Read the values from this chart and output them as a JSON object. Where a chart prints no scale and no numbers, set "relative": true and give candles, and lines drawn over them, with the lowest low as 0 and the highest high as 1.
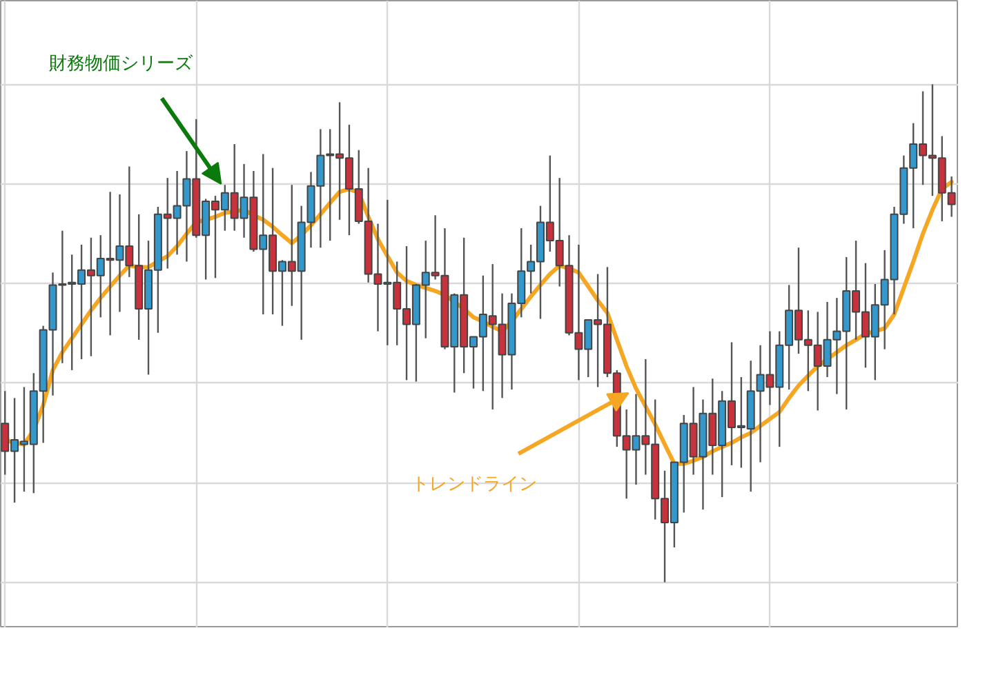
{
  "chart_data": {
    "type": "candlestick",
    "relative": true,
    "grid": true,
    "annotations": [
      "財務物価シリーズ"
    ],
    "categories": [
      null,
      null,
      null,
      null,
      null,
      null,
      null,
      null,
      null,
      null,
      null,
      null,
      null,
      null,
      null,
      null,
      null,
      null,
      null,
      null,
      null,
      null,
      null,
      null,
      null,
      null,
      null,
      null,
      null,
      null,
      null,
      null,
      null,
      null,
      null,
      null,
      null,
      null,
      null,
      null,
      null,
      null,
      null,
      null,
      null,
      null,
      null,
      null,
      null,
      null,
      null,
      null,
      null,
      null,
      null,
      null,
      null,
      null,
      null,
      null,
      null,
      null,
      null,
      null,
      null,
      null,
      null,
      null,
      null,
      null,
      null,
      null,
      null,
      null,
      null,
      null,
      null,
      null,
      null,
      null,
      null,
      null,
      null,
      null,
      null,
      null,
      null,
      null,
      null,
      null,
      null,
      null,
      null,
      null,
      null,
      null,
      null,
      null,
      null,
      null
    ],
    "series": [
      {
        "colors": [
          "#c8323c",
          "#3399cc",
          "#3399cc",
          "#3399cc",
          "#3399cc",
          "#3399cc",
          "#3399cc",
          "#3399cc",
          "#3399cc",
          "#c8323c",
          "#3399cc",
          "#c8323c",
          "#3399cc",
          "#c8323c",
          "#c8323c",
          "#3399cc",
          "#3399cc",
          "#c8323c",
          "#3399cc",
          "#3399cc",
          "#c8323c",
          "#3399cc",
          "#c8323c",
          "#3399cc",
          "#c8323c",
          "#3399cc",
          "#c8323c",
          "#3399cc",
          "#c8323c",
          "#3399cc",
          "#c8323c",
          "#3399cc",
          "#3399cc",
          "#3399cc",
          "#3399cc",
          "#c8323c",
          "#c8323c",
          "#c8323c",
          "#c8323c",
          "#c8323c",
          "#3399cc",
          "#c8323c",
          "#c8323c",
          "#3399cc",
          "#3399cc",
          "#c8323c",
          "#c8323c",
          "#3399cc",
          "#c8323c",
          "#3399cc",
          "#3399cc",
          "#c8323c",
          "#c8323c",
          "#3399cc",
          "#3399cc",
          "#3399cc",
          "#3399cc",
          "#c8323c",
          "#c8323c",
          "#c8323c",
          "#c8323c",
          "#3399cc",
          "#c8323c",
          "#c8323c",
          "#c8323c",
          "#c8323c",
          "#3399cc",
          "#c8323c",
          "#c8323c",
          "#c8323c",
          "#3399cc",
          "#3399cc",
          "#c8323c",
          "#3399cc",
          "#c8323c",
          "#3399cc",
          "#c8323c",
          "#3399cc",
          "#3399cc",
          "#3399cc",
          "#c8323c",
          "#3399cc",
          "#3399cc",
          "#c8323c",
          "#c8323c",
          "#c8323c",
          "#3399cc",
          "#3399cc",
          "#3399cc",
          "#c8323c",
          "#c8323c",
          "#3399cc",
          "#3399cc",
          "#3399cc",
          "#3399cc",
          "#3399cc",
          "#c8323c",
          "#c8323c",
          "#c8323c",
          "#c8323c"
        ],
        "ohlc": [
          [
            0.319,
            0.384,
            0.216,
            0.263
          ],
          [
            0.263,
            0.37,
            0.16,
            0.286
          ],
          [
            0.277,
            0.392,
            0.182,
            0.283
          ],
          [
            0.277,
            0.42,
            0.179,
            0.384
          ],
          [
            0.384,
            0.515,
            0.28,
            0.507
          ],
          [
            0.507,
            0.622,
            0.375,
            0.597
          ],
          [
            0.597,
            0.706,
            0.44,
            0.599
          ],
          [
            0.599,
            0.658,
            0.426,
            0.602
          ],
          [
            0.599,
            0.678,
            0.448,
            0.627
          ],
          [
            0.627,
            0.692,
            0.454,
            0.616
          ],
          [
            0.616,
            0.697,
            0.532,
            0.65
          ],
          [
            0.65,
            0.784,
            0.496,
            0.647
          ],
          [
            0.647,
            0.779,
            0.543,
            0.675
          ],
          [
            0.675,
            0.835,
            0.613,
            0.636
          ],
          [
            0.636,
            0.739,
            0.487,
            0.549
          ],
          [
            0.549,
            0.686,
            0.417,
            0.627
          ],
          [
            0.627,
            0.754,
            0.501,
            0.739
          ],
          [
            0.739,
            0.812,
            0.63,
            0.731
          ],
          [
            0.731,
            0.826,
            0.658,
            0.756
          ],
          [
            0.756,
            0.866,
            0.644,
            0.81
          ],
          [
            0.81,
            0.93,
            0.692,
            0.697
          ],
          [
            0.697,
            0.77,
            0.608,
            0.765
          ],
          [
            0.765,
            0.776,
            0.611,
            0.748
          ],
          [
            0.748,
            0.798,
            0.706,
            0.782
          ],
          [
            0.782,
            0.88,
            0.706,
            0.731
          ],
          [
            0.731,
            0.84,
            0.692,
            0.773
          ],
          [
            0.773,
            0.826,
            0.664,
            0.669
          ],
          [
            0.669,
            0.86,
            0.538,
            0.697
          ],
          [
            0.697,
            0.832,
            0.538,
            0.625
          ],
          [
            0.625,
            0.647,
            0.515,
            0.644
          ],
          [
            0.644,
            0.798,
            0.555,
            0.625
          ],
          [
            0.625,
            0.756,
            0.487,
            0.723
          ],
          [
            0.723,
            0.824,
            0.672,
            0.796
          ],
          [
            0.796,
            0.91,
            0.672,
            0.857
          ],
          [
            0.857,
            0.91,
            0.686,
            0.86
          ],
          [
            0.86,
            0.964,
            0.728,
            0.852
          ],
          [
            0.852,
            0.919,
            0.697,
            0.79
          ],
          [
            0.79,
            0.868,
            0.72,
            0.725
          ],
          [
            0.725,
            0.832,
            0.602,
            0.619
          ],
          [
            0.619,
            0.72,
            0.504,
            0.599
          ],
          [
            0.599,
            0.768,
            0.476,
            0.602
          ],
          [
            0.602,
            0.644,
            0.476,
            0.549
          ],
          [
            0.549,
            0.675,
            0.406,
            0.518
          ],
          [
            0.518,
            0.599,
            0.403,
            0.597
          ],
          [
            0.597,
            0.686,
            0.49,
            0.622
          ],
          [
            0.622,
            0.737,
            0.608,
            0.616
          ],
          [
            0.616,
            0.711,
            0.468,
            0.473
          ],
          [
            0.473,
            0.58,
            0.381,
            0.577
          ],
          [
            0.577,
            0.692,
            0.42,
            0.473
          ],
          [
            0.473,
            0.493,
            0.389,
            0.493
          ],
          [
            0.493,
            0.616,
            0.384,
            0.538
          ],
          [
            0.535,
            0.639,
            0.347,
            0.518
          ],
          [
            0.518,
            0.58,
            0.37,
            0.457
          ],
          [
            0.457,
            0.58,
            0.387,
            0.56
          ],
          [
            0.56,
            0.711,
            0.532,
            0.625
          ],
          [
            0.625,
            0.678,
            0.58,
            0.644
          ],
          [
            0.644,
            0.756,
            0.529,
            0.723
          ],
          [
            0.723,
            0.857,
            0.664,
            0.686
          ],
          [
            0.686,
            0.812,
            0.594,
            0.636
          ],
          [
            0.636,
            0.697,
            0.496,
            0.501
          ],
          [
            0.501,
            0.678,
            0.406,
            0.468
          ],
          [
            0.468,
            0.527,
            0.412,
            0.527
          ],
          [
            0.527,
            0.619,
            0.392,
            0.518
          ],
          [
            0.518,
            0.633,
            0.412,
            0.42
          ],
          [
            0.42,
            0.426,
            0.272,
            0.294
          ],
          [
            0.294,
            0.347,
            0.168,
            0.266
          ],
          [
            0.266,
            0.378,
            0.196,
            0.294
          ],
          [
            0.294,
            0.448,
            0.216,
            0.277
          ],
          [
            0.277,
            0.367,
            0.126,
            0.168
          ],
          [
            0.168,
            0.224,
            0.0,
            0.12
          ],
          [
            0.12,
            0.241,
            0.07,
            0.241
          ],
          [
            0.241,
            0.336,
            0.14,
            0.319
          ],
          [
            0.319,
            0.392,
            0.216,
            0.252
          ],
          [
            0.252,
            0.367,
            0.146,
            0.339
          ],
          [
            0.339,
            0.409,
            0.216,
            0.275
          ],
          [
            0.275,
            0.384,
            0.171,
            0.364
          ],
          [
            0.364,
            0.482,
            0.235,
            0.311
          ],
          [
            0.311,
            0.412,
            0.23,
            0.314
          ],
          [
            0.308,
            0.445,
            0.182,
            0.384
          ],
          [
            0.384,
            0.476,
            0.241,
            0.417
          ],
          [
            0.417,
            0.504,
            0.356,
            0.392
          ],
          [
            0.392,
            0.504,
            0.272,
            0.476
          ],
          [
            0.476,
            0.597,
            0.387,
            0.546
          ],
          [
            0.546,
            0.672,
            0.459,
            0.487
          ],
          [
            0.487,
            0.546,
            0.384,
            0.476
          ],
          [
            0.476,
            0.543,
            0.345,
            0.434
          ],
          [
            0.434,
            0.563,
            0.412,
            0.487
          ],
          [
            0.487,
            0.571,
            0.378,
            0.504
          ],
          [
            0.504,
            0.653,
            0.347,
            0.585
          ],
          [
            0.585,
            0.686,
            0.487,
            0.543
          ],
          [
            0.543,
            0.641,
            0.431,
            0.493
          ],
          [
            0.493,
            0.599,
            0.406,
            0.557
          ],
          [
            0.557,
            0.667,
            0.468,
            0.608
          ],
          [
            0.608,
            0.754,
            0.538,
            0.739
          ],
          [
            0.739,
            0.857,
            0.72,
            0.832
          ],
          [
            0.832,
            0.922,
            0.711,
            0.88
          ],
          [
            0.88,
            0.986,
            0.798,
            0.857
          ],
          [
            0.857,
            1.0,
            0.776,
            0.852
          ],
          [
            0.852,
            0.896,
            0.725,
            0.782
          ],
          [
            0.782,
            0.815,
            0.734,
            0.759
          ]
        ]
      },
      {
        "name": "トレンドライン",
        "type": "line",
        "color": "#f5a623",
        "values": [
          0.286,
          0.28,
          0.277,
          0.305,
          0.356,
          0.426,
          0.462,
          0.49,
          0.518,
          0.546,
          0.571,
          0.594,
          0.616,
          0.636,
          0.633,
          0.633,
          0.644,
          0.655,
          0.675,
          0.7,
          0.723,
          0.728,
          0.734,
          0.742,
          0.745,
          0.748,
          0.737,
          0.728,
          0.714,
          0.697,
          0.681,
          0.697,
          0.717,
          0.739,
          0.762,
          0.784,
          0.79,
          0.782,
          0.734,
          0.689,
          0.655,
          0.622,
          0.605,
          0.597,
          0.591,
          0.585,
          0.577,
          0.563,
          0.549,
          0.532,
          0.524,
          0.513,
          0.504,
          0.524,
          0.549,
          0.574,
          0.597,
          0.619,
          0.636,
          0.63,
          0.622,
          0.594,
          0.566,
          0.541,
          0.487,
          0.434,
          0.389,
          0.353,
          0.317,
          0.277,
          0.238,
          0.238,
          0.244,
          0.252,
          0.263,
          0.272,
          0.28,
          0.291,
          0.3,
          0.314,
          0.328,
          0.342,
          0.37,
          0.395,
          0.415,
          0.434,
          0.448,
          0.462,
          0.476,
          0.487,
          0.499,
          0.504,
          0.51,
          0.538,
          0.591,
          0.644,
          0.7,
          0.748,
          0.79,
          0.804
        ]
      }
    ]
  }
}
